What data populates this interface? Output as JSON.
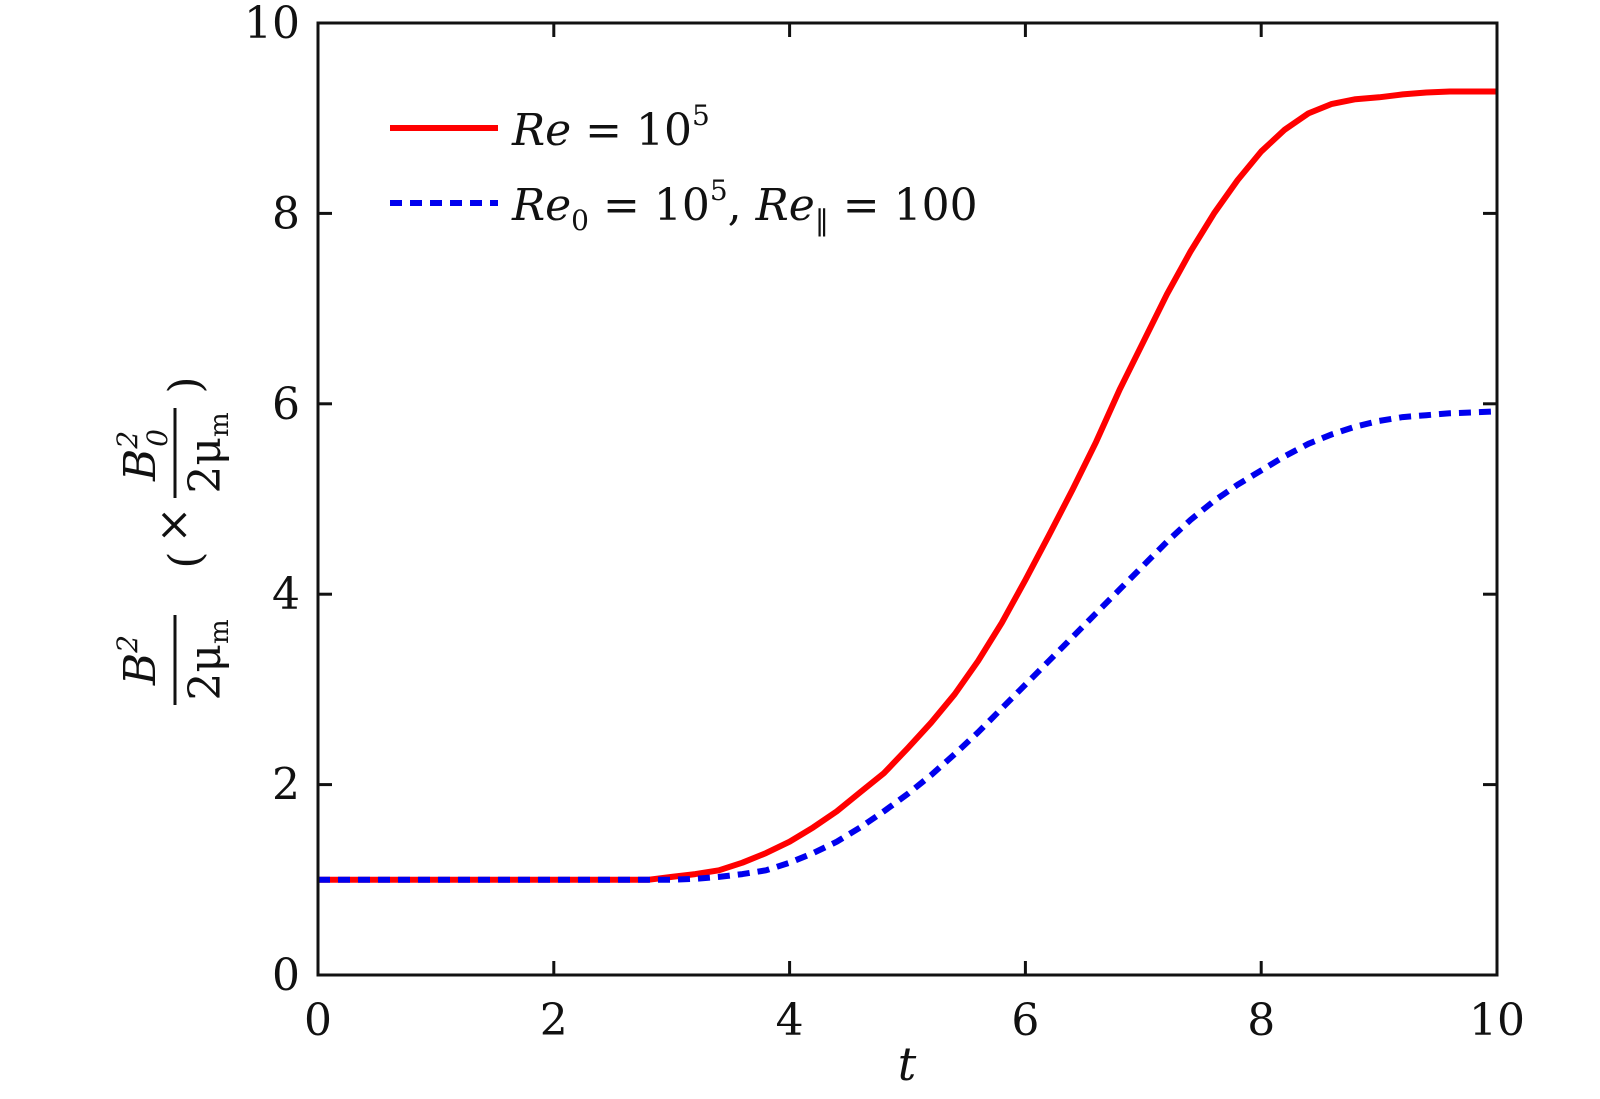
{
  "chart_data": {
    "type": "line",
    "xlabel": "t",
    "ylabel": "B²/2μm (×B0²/2μm)",
    "xlim": [
      0,
      10
    ],
    "ylim": [
      0,
      10
    ],
    "xticks": [
      "0",
      "2",
      "4",
      "6",
      "8",
      "10"
    ],
    "yticks": [
      "0",
      "2",
      "4",
      "6",
      "8",
      "10"
    ],
    "grid": false,
    "legend_position": "top-left",
    "series": [
      {
        "name": "Re = 10^5",
        "color": "#ff0000",
        "style": "solid",
        "x": [
          0,
          1,
          2,
          2.8,
          3.0,
          3.2,
          3.4,
          3.6,
          3.8,
          4.0,
          4.2,
          4.4,
          4.6,
          4.8,
          5.0,
          5.2,
          5.4,
          5.6,
          5.8,
          6.0,
          6.2,
          6.4,
          6.6,
          6.8,
          7.0,
          7.2,
          7.4,
          7.6,
          7.8,
          8.0,
          8.2,
          8.4,
          8.6,
          8.8,
          9.0,
          9.2,
          9.4,
          9.6,
          9.8,
          10.0
        ],
        "y": [
          1.0,
          1.0,
          1.0,
          1.0,
          1.03,
          1.06,
          1.1,
          1.18,
          1.28,
          1.4,
          1.55,
          1.72,
          1.92,
          2.12,
          2.38,
          2.65,
          2.95,
          3.3,
          3.7,
          4.15,
          4.62,
          5.1,
          5.6,
          6.15,
          6.65,
          7.15,
          7.6,
          8.0,
          8.35,
          8.65,
          8.88,
          9.05,
          9.15,
          9.2,
          9.22,
          9.25,
          9.27,
          9.28,
          9.28,
          9.28
        ]
      },
      {
        "name": "Re0 = 10^5, Re‖ = 100",
        "color": "#0000ee",
        "style": "dashed",
        "x": [
          0,
          1,
          2,
          3.0,
          3.2,
          3.4,
          3.6,
          3.8,
          4.0,
          4.2,
          4.4,
          4.6,
          4.8,
          5.0,
          5.2,
          5.4,
          5.6,
          5.8,
          6.0,
          6.2,
          6.4,
          6.6,
          6.8,
          7.0,
          7.2,
          7.4,
          7.6,
          7.8,
          8.0,
          8.2,
          8.4,
          8.6,
          8.8,
          9.0,
          9.2,
          9.4,
          9.6,
          9.8,
          10.0
        ],
        "y": [
          1.0,
          1.0,
          1.0,
          1.0,
          1.01,
          1.03,
          1.06,
          1.1,
          1.18,
          1.28,
          1.4,
          1.55,
          1.72,
          1.9,
          2.1,
          2.32,
          2.55,
          2.8,
          3.05,
          3.3,
          3.55,
          3.8,
          4.05,
          4.3,
          4.55,
          4.78,
          4.98,
          5.15,
          5.3,
          5.45,
          5.58,
          5.68,
          5.76,
          5.82,
          5.86,
          5.88,
          5.9,
          5.91,
          5.92
        ]
      }
    ]
  },
  "legend": {
    "entries": [
      {
        "base": "Re",
        "sub": "",
        "eq": " = 10",
        "sup": "5",
        "rest": "",
        "rest_base": "",
        "rest_sub": "",
        "rest_eq": ""
      },
      {
        "base": "Re",
        "sub": "0",
        "eq": " = 10",
        "sup": "5",
        "rest": ", ",
        "rest_base": "Re",
        "rest_sub": "‖",
        "rest_eq": " = 100"
      }
    ]
  },
  "ylabel_parts": {
    "num": "B",
    "num_sup": "2",
    "den": "2μ",
    "den_sub": "m",
    "times": "×",
    "inner_num": "B",
    "inner_sup": "2",
    "inner_sub": "0",
    "inner_den": "2μ",
    "inner_den_sub": "m"
  }
}
